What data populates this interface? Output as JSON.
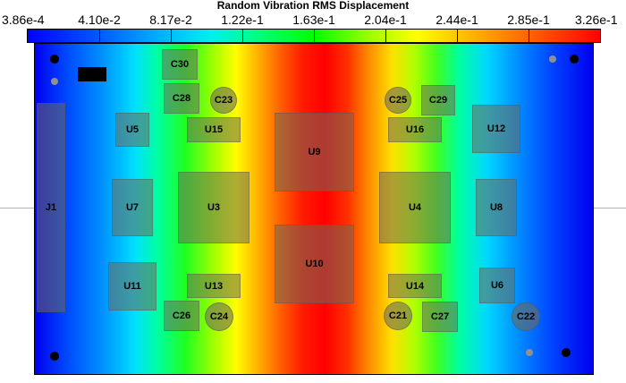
{
  "chart": {
    "title": "Random Vibration RMS Displacement",
    "scale_labels": [
      "3.86e-4",
      "4.10e-2",
      "8.17e-2",
      "1.22e-1",
      "1.63e-1",
      "2.04e-1",
      "2.44e-1",
      "2.85e-1",
      "3.26e-1"
    ]
  },
  "components": {
    "J1": "J1",
    "U5": "U5",
    "U7": "U7",
    "U11": "U11",
    "U3": "U3",
    "U15": "U15",
    "U13": "U13",
    "U9": "U9",
    "U10": "U10",
    "U4": "U4",
    "U16": "U16",
    "U14": "U14",
    "U12": "U12",
    "U8": "U8",
    "U6": "U6",
    "C30": "C30",
    "C28": "C28",
    "C26": "C26",
    "C29": "C29",
    "C27": "C27",
    "C23": "C23",
    "C24": "C24",
    "C25": "C25",
    "C21": "C21",
    "C22": "C22"
  },
  "colors": {
    "colormap": [
      "#0000ff",
      "#00a8ff",
      "#00f0f0",
      "#00ff00",
      "#ffff00",
      "#ff6000",
      "#ff0000"
    ],
    "component_fill": "#6e695a"
  }
}
